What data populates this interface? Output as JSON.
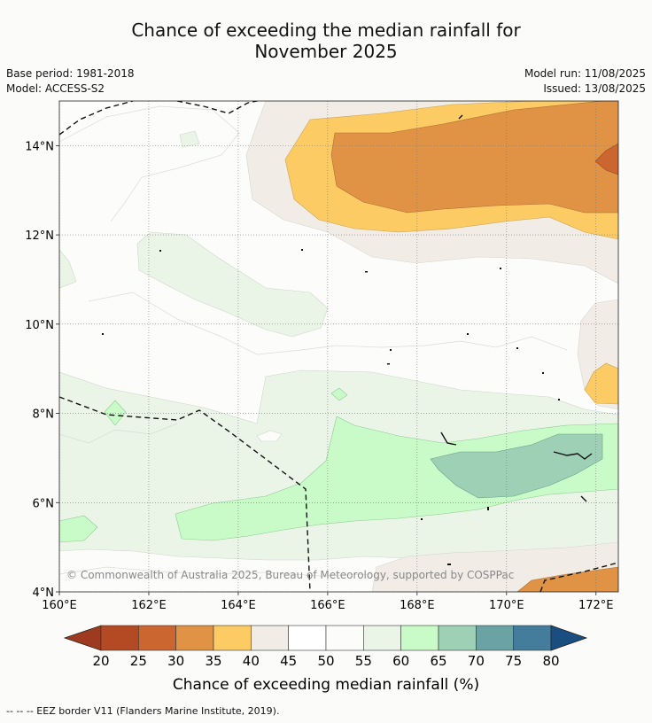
{
  "header": {
    "title_line1": "Chance of exceeding the median rainfall for",
    "title_line2": "November 2025",
    "base_period": "Base period: 1981-2018",
    "model": "Model: ACCESS-S2",
    "model_run": "Model run: 11/08/2025",
    "issued": "Issued: 13/08/2025"
  },
  "map": {
    "copyright": "© Commonwealth of Australia 2025, Bureau of Meteorology, supported by COSPPac",
    "eez_note": "-- -- -- EEZ border V11 (Flanders Marine Institute, 2019)."
  },
  "chart_data": {
    "type": "heatmap",
    "title": "Chance of exceeding the median rainfall for November 2025",
    "x_ticks": [
      "160°E",
      "162°E",
      "164°E",
      "166°E",
      "168°E",
      "170°E",
      "172°E"
    ],
    "y_ticks": [
      "4°N",
      "6°N",
      "8°N",
      "10°N",
      "12°N",
      "14°N"
    ],
    "xlim": [
      160,
      172.5
    ],
    "ylim": [
      4,
      15
    ],
    "grid": true,
    "colorbar": {
      "label": "Chance of exceeding median rainfall (%)",
      "ticks": [
        "20",
        "25",
        "30",
        "35",
        "40",
        "45",
        "50",
        "55",
        "60",
        "65",
        "70",
        "75",
        "80"
      ],
      "colors": [
        "#9e3a1f",
        "#b44a24",
        "#cc6631",
        "#e09245",
        "#fdcb64",
        "#f1ece6",
        "#ffffff",
        "#fcfdfb",
        "#eaf5e8",
        "#c8fbc8",
        "#9dd0b5",
        "#6ba3a5",
        "#447d9c",
        "#1a4d80"
      ]
    }
  }
}
